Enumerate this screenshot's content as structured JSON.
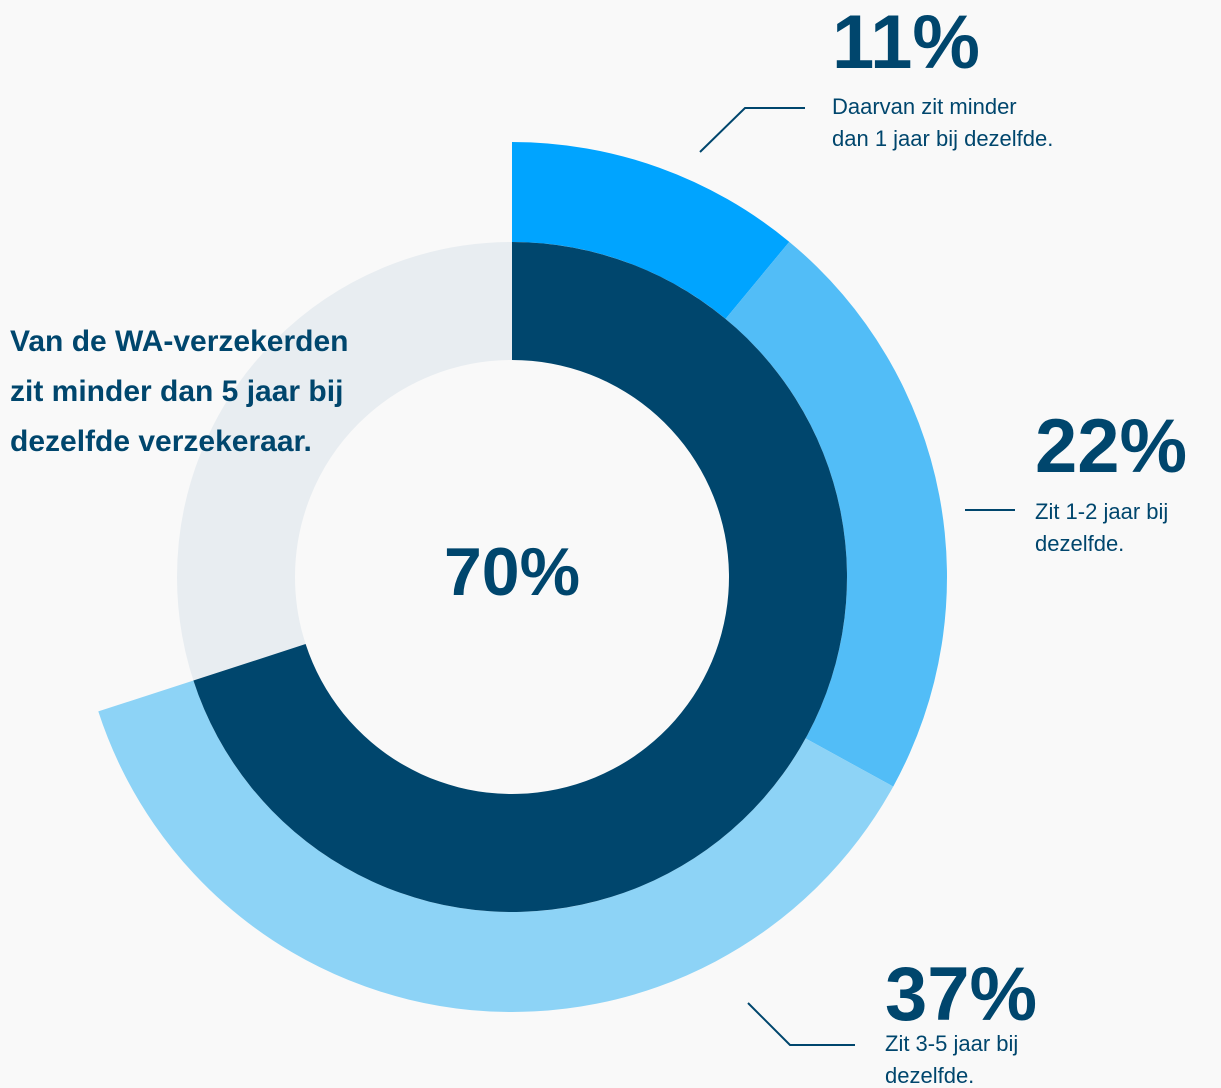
{
  "chart_data": {
    "type": "nested-donut",
    "title_lines": [
      "Van de WA-verzekerden",
      "zit minder dan 5 jaar bij",
      "dezelfde verzekeraar."
    ],
    "inner": {
      "value": 70,
      "value_label": "70%",
      "color": "#00466d",
      "rest_color": "#e8edf1"
    },
    "outer": {
      "values": [
        11,
        22,
        37
      ],
      "value_labels": [
        "11%",
        "22%",
        "37%"
      ],
      "colors": [
        "#00a4ff",
        "#52bdf7",
        "#8dd3f6"
      ],
      "labels": [
        [
          "Daarvan zit minder",
          "dan 1 jaar bij dezelfde."
        ],
        [
          "Zit 1-2 jaar bij",
          "dezelfde."
        ],
        [
          "Zit 3-5 jaar bij",
          "dezelfde."
        ]
      ]
    }
  }
}
